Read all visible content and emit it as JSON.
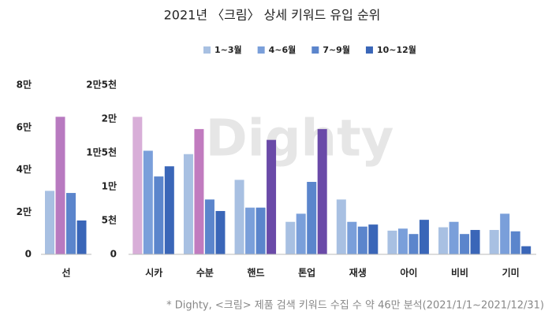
{
  "watermark": "Dighty",
  "chart_data": [
    {
      "type": "bar",
      "title": "2021년 〈크림〉 상세 키워드 유입 순위",
      "note": "* Dighty, <크림> 제품 검색 키워드 수집 수 약 46만 분석(2021/1/1~2021/12/31)",
      "categories": [
        "선"
      ],
      "ylim": [
        0,
        80000
      ],
      "yticks": [
        0,
        {
          "value": 20000,
          "label": "2만"
        },
        {
          "value": 40000,
          "label": "4만"
        },
        {
          "value": 60000,
          "label": "6만"
        },
        {
          "value": 80000,
          "label": "8만"
        }
      ],
      "series": [
        {
          "name": "1~3월",
          "color": "#a8c0e2",
          "colors": [
            "#a8c0e2"
          ],
          "values": [
            30000
          ]
        },
        {
          "name": "4~6월",
          "color": "#7a9fda",
          "colors": [
            "#b87ac0"
          ],
          "values": [
            65000
          ]
        },
        {
          "name": "7~9월",
          "color": "#5b85cc",
          "colors": [
            "#5b85cc"
          ],
          "values": [
            29000
          ]
        },
        {
          "name": "10~12월",
          "color": "#3a66b8",
          "colors": [
            "#3a66b8"
          ],
          "values": [
            16000
          ]
        }
      ]
    },
    {
      "type": "bar",
      "categories": [
        "시카",
        "수분",
        "핸드",
        "톤업",
        "재생",
        "아이",
        "비비",
        "기미"
      ],
      "ylim": [
        0,
        25000
      ],
      "yticks": [
        0,
        {
          "value": 5000,
          "label": "5천"
        },
        {
          "value": 10000,
          "label": "1만"
        },
        {
          "value": 15000,
          "label": "1만5천"
        },
        {
          "value": 20000,
          "label": "2만"
        },
        {
          "value": 25000,
          "label": "2만5천"
        }
      ],
      "series": [
        {
          "colors": [
            "#d8aed8",
            "#a8c0e2",
            "#a8c0e2",
            "#a8c0e2",
            "#a8c0e2",
            "#a8c0e2",
            "#a8c0e2",
            "#a8c0e2"
          ],
          "values": [
            20300,
            14800,
            11000,
            4800,
            8100,
            3500,
            4000,
            3600
          ]
        },
        {
          "colors": [
            "#7a9fda",
            "#c17bbf",
            "#7a9fda",
            "#7a9fda",
            "#7a9fda",
            "#7a9fda",
            "#7a9fda",
            "#7a9fda"
          ],
          "values": [
            15300,
            18500,
            6900,
            6000,
            4800,
            3800,
            4800,
            6000
          ]
        },
        {
          "colors": [
            "#5b85cc",
            "#5b85cc",
            "#5b85cc",
            "#5b85cc",
            "#5b85cc",
            "#5b85cc",
            "#5b85cc",
            "#5b85cc"
          ],
          "values": [
            11500,
            8100,
            6900,
            10700,
            4100,
            3000,
            3000,
            3400
          ]
        },
        {
          "colors": [
            "#3a66b8",
            "#3a66b8",
            "#6a4aa8",
            "#6a4aa8",
            "#3a66b8",
            "#3a66b8",
            "#3a66b8",
            "#3a66b8"
          ],
          "values": [
            13000,
            6400,
            16900,
            18500,
            4400,
            5100,
            3600,
            1200
          ]
        }
      ]
    }
  ]
}
